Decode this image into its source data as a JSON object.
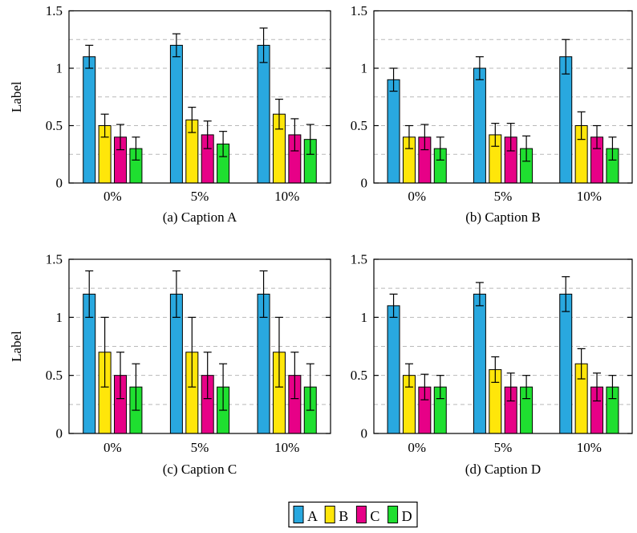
{
  "figure": {
    "background": "#ffffff",
    "axis_color": "#000000",
    "grid_color": "#b9b9b9",
    "bar_border_color": "#000000",
    "error_bar_color": "#000000"
  },
  "legend": {
    "position": "bottom-center",
    "entries": [
      {
        "label": "A",
        "color": "#29A8DF"
      },
      {
        "label": "B",
        "color": "#FFE60A"
      },
      {
        "label": "C",
        "color": "#E70087"
      },
      {
        "label": "D",
        "color": "#1FDF30"
      }
    ]
  },
  "chart_data": [
    {
      "id": "a",
      "type": "bar",
      "caption": "(a) Caption A",
      "ylabel": "Label",
      "show_ylabel": true,
      "categories": [
        "0%",
        "5%",
        "10%"
      ],
      "ylim": [
        0,
        1.5
      ],
      "ytick_labels": [
        "0",
        "0.5",
        "1",
        "1.5"
      ],
      "ytick_values": [
        0,
        0.5,
        1,
        1.5
      ],
      "gridlines": [
        0.25,
        0.5,
        0.75,
        1.0,
        1.25
      ],
      "grid_style": "dashed",
      "series": [
        {
          "name": "A",
          "values": [
            1.1,
            1.2,
            1.2
          ],
          "errors": [
            0.1,
            0.1,
            0.15
          ]
        },
        {
          "name": "B",
          "values": [
            0.5,
            0.55,
            0.6
          ],
          "errors": [
            0.1,
            0.11,
            0.13
          ]
        },
        {
          "name": "C",
          "values": [
            0.4,
            0.42,
            0.42
          ],
          "errors": [
            0.11,
            0.12,
            0.14
          ]
        },
        {
          "name": "D",
          "values": [
            0.3,
            0.34,
            0.38
          ],
          "errors": [
            0.1,
            0.11,
            0.13
          ]
        }
      ]
    },
    {
      "id": "b",
      "type": "bar",
      "caption": "(b) Caption B",
      "ylabel": "Label",
      "show_ylabel": false,
      "categories": [
        "0%",
        "5%",
        "10%"
      ],
      "ylim": [
        0,
        1.5
      ],
      "ytick_labels": [
        "0",
        "0.5",
        "1",
        "1.5"
      ],
      "ytick_values": [
        0,
        0.5,
        1,
        1.5
      ],
      "gridlines": [
        0.25,
        0.5,
        0.75,
        1.0,
        1.25
      ],
      "grid_style": "dashed",
      "series": [
        {
          "name": "A",
          "values": [
            0.9,
            1.0,
            1.1
          ],
          "errors": [
            0.1,
            0.1,
            0.15
          ]
        },
        {
          "name": "B",
          "values": [
            0.4,
            0.42,
            0.5
          ],
          "errors": [
            0.1,
            0.1,
            0.12
          ]
        },
        {
          "name": "C",
          "values": [
            0.4,
            0.4,
            0.4
          ],
          "errors": [
            0.11,
            0.12,
            0.1
          ]
        },
        {
          "name": "D",
          "values": [
            0.3,
            0.3,
            0.3
          ],
          "errors": [
            0.1,
            0.11,
            0.1
          ]
        }
      ]
    },
    {
      "id": "c",
      "type": "bar",
      "caption": "(c) Caption C",
      "ylabel": "Label",
      "show_ylabel": true,
      "categories": [
        "0%",
        "5%",
        "10%"
      ],
      "ylim": [
        0,
        1.5
      ],
      "ytick_labels": [
        "0",
        "0.5",
        "1",
        "1.5"
      ],
      "ytick_values": [
        0,
        0.5,
        1,
        1.5
      ],
      "gridlines": [
        0.25,
        0.5,
        0.75,
        1.0,
        1.25
      ],
      "grid_style": "dashed",
      "series": [
        {
          "name": "A",
          "values": [
            1.2,
            1.2,
            1.2
          ],
          "errors": [
            0.2,
            0.2,
            0.2
          ]
        },
        {
          "name": "B",
          "values": [
            0.7,
            0.7,
            0.7
          ],
          "errors": [
            0.3,
            0.3,
            0.3
          ]
        },
        {
          "name": "C",
          "values": [
            0.5,
            0.5,
            0.5
          ],
          "errors": [
            0.2,
            0.2,
            0.2
          ]
        },
        {
          "name": "D",
          "values": [
            0.4,
            0.4,
            0.4
          ],
          "errors": [
            0.2,
            0.2,
            0.2
          ]
        }
      ]
    },
    {
      "id": "d",
      "type": "bar",
      "caption": "(d) Caption D",
      "ylabel": "Label",
      "show_ylabel": false,
      "categories": [
        "0%",
        "5%",
        "10%"
      ],
      "ylim": [
        0,
        1.5
      ],
      "ytick_labels": [
        "0",
        "0.5",
        "1",
        "1.5"
      ],
      "ytick_values": [
        0,
        0.5,
        1,
        1.5
      ],
      "gridlines": [
        0.25,
        0.5,
        0.75,
        1.0,
        1.25
      ],
      "grid_style": "dashed",
      "series": [
        {
          "name": "A",
          "values": [
            1.1,
            1.2,
            1.2
          ],
          "errors": [
            0.1,
            0.1,
            0.15
          ]
        },
        {
          "name": "B",
          "values": [
            0.5,
            0.55,
            0.6
          ],
          "errors": [
            0.1,
            0.11,
            0.13
          ]
        },
        {
          "name": "C",
          "values": [
            0.4,
            0.4,
            0.4
          ],
          "errors": [
            0.11,
            0.12,
            0.12
          ]
        },
        {
          "name": "D",
          "values": [
            0.4,
            0.4,
            0.4
          ],
          "errors": [
            0.1,
            0.1,
            0.1
          ]
        }
      ]
    }
  ]
}
